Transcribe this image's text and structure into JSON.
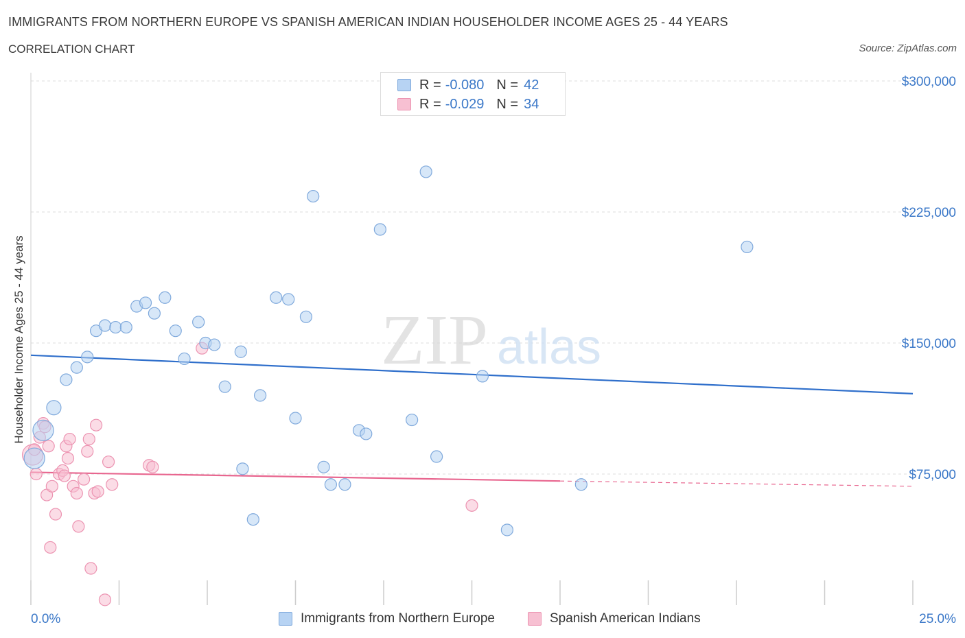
{
  "header": {
    "title": "IMMIGRANTS FROM NORTHERN EUROPE VS SPANISH AMERICAN INDIAN HOUSEHOLDER INCOME AGES 25 - 44 YEARS",
    "subtitle": "CORRELATION CHART",
    "source": "Source: ZipAtlas.com"
  },
  "legend": {
    "rows": [
      {
        "r_label": "R =",
        "r_value": "-0.080",
        "n_label": "N =",
        "n_value": "42"
      },
      {
        "r_label": "R =",
        "r_value": "-0.029",
        "n_label": "N =",
        "n_value": "34"
      }
    ]
  },
  "watermark": {
    "zip": "ZIP",
    "atlas": "atlas"
  },
  "colors": {
    "blue_fill": "#b7d3f3",
    "blue_stroke": "#7fa9dc",
    "blue_line": "#2f6fcb",
    "pink_fill": "#f7c0d2",
    "pink_stroke": "#ec93b1",
    "pink_line": "#e8668f",
    "axis_text_blue": "#3b78c8",
    "grid": "#dddddd"
  },
  "chart_data": {
    "type": "scatter",
    "title": "IMMIGRANTS FROM NORTHERN EUROPE VS SPANISH AMERICAN INDIAN HOUSEHOLDER INCOME AGES 25 - 44 YEARS",
    "xlabel": "",
    "ylabel": "Householder Income Ages 25 - 44 years",
    "xlim": [
      0,
      25
    ],
    "ylim": [
      0,
      300000
    ],
    "x_tick_labels": [
      "0.0%",
      "25.0%"
    ],
    "y_ticks": [
      75000,
      150000,
      225000,
      300000
    ],
    "y_tick_labels": [
      "$75,000",
      "$150,000",
      "$225,000",
      "$300,000"
    ],
    "grid": true,
    "legend_position": "top-center",
    "series": [
      {
        "name": "Immigrants from Northern Europe",
        "color": "#b7d3f3",
        "points": [
          [
            0.1,
            84000
          ],
          [
            0.35,
            100000
          ],
          [
            0.65,
            113000
          ],
          [
            1.0,
            129000
          ],
          [
            1.3,
            136000
          ],
          [
            1.6,
            142000
          ],
          [
            1.85,
            157000
          ],
          [
            2.1,
            160000
          ],
          [
            2.4,
            159000
          ],
          [
            2.7,
            159000
          ],
          [
            3.0,
            171000
          ],
          [
            3.25,
            173000
          ],
          [
            3.5,
            167000
          ],
          [
            3.8,
            176000
          ],
          [
            4.1,
            157000
          ],
          [
            4.35,
            141000
          ],
          [
            4.75,
            162000
          ],
          [
            4.95,
            150000
          ],
          [
            5.2,
            149000
          ],
          [
            5.5,
            125000
          ],
          [
            5.95,
            145000
          ],
          [
            6.0,
            78000
          ],
          [
            6.3,
            49000
          ],
          [
            6.5,
            120000
          ],
          [
            6.95,
            176000
          ],
          [
            7.3,
            175000
          ],
          [
            7.5,
            107000
          ],
          [
            7.8,
            165000
          ],
          [
            8.0,
            234000
          ],
          [
            8.3,
            79000
          ],
          [
            8.5,
            69000
          ],
          [
            8.9,
            69000
          ],
          [
            9.3,
            100000
          ],
          [
            9.5,
            98000
          ],
          [
            9.9,
            215000
          ],
          [
            10.8,
            106000
          ],
          [
            11.2,
            248000
          ],
          [
            11.5,
            85000
          ],
          [
            12.8,
            131000
          ],
          [
            13.5,
            43000
          ],
          [
            15.6,
            69000
          ],
          [
            20.3,
            205000
          ]
        ],
        "sizes": [
          "large",
          "large",
          "medium",
          "normal",
          "normal",
          "normal",
          "normal",
          "normal",
          "normal",
          "normal",
          "normal",
          "normal",
          "normal",
          "normal",
          "normal",
          "normal",
          "normal",
          "normal",
          "normal",
          "normal",
          "normal",
          "normal",
          "normal",
          "normal",
          "normal",
          "normal",
          "normal",
          "normal",
          "normal",
          "normal",
          "normal",
          "normal",
          "normal",
          "normal",
          "normal",
          "normal",
          "normal",
          "normal",
          "normal",
          "normal",
          "normal",
          "normal"
        ],
        "trend": {
          "x": [
            0,
            25
          ],
          "y": [
            143000,
            121000
          ]
        }
      },
      {
        "name": "Spanish American Indians",
        "color": "#f7c0d2",
        "points": [
          [
            0.05,
            86000
          ],
          [
            0.1,
            89000
          ],
          [
            0.15,
            75000
          ],
          [
            0.25,
            96000
          ],
          [
            0.35,
            104000
          ],
          [
            0.4,
            102000
          ],
          [
            0.45,
            63000
          ],
          [
            0.5,
            91000
          ],
          [
            0.55,
            33000
          ],
          [
            0.6,
            68000
          ],
          [
            0.7,
            52000
          ],
          [
            0.8,
            75000
          ],
          [
            0.9,
            77000
          ],
          [
            0.95,
            74000
          ],
          [
            1.0,
            91000
          ],
          [
            1.05,
            84000
          ],
          [
            1.1,
            95000
          ],
          [
            1.2,
            68000
          ],
          [
            1.3,
            64000
          ],
          [
            1.35,
            45000
          ],
          [
            1.5,
            72000
          ],
          [
            1.6,
            88000
          ],
          [
            1.65,
            95000
          ],
          [
            1.7,
            21000
          ],
          [
            1.8,
            64000
          ],
          [
            1.85,
            103000
          ],
          [
            1.9,
            65000
          ],
          [
            2.1,
            3000
          ],
          [
            2.2,
            82000
          ],
          [
            2.3,
            69000
          ],
          [
            3.35,
            80000
          ],
          [
            3.45,
            79000
          ],
          [
            4.85,
            147000
          ],
          [
            12.5,
            57000
          ]
        ],
        "sizes": [
          "large",
          "normal",
          "normal",
          "normal",
          "normal",
          "normal",
          "normal",
          "normal",
          "normal",
          "normal",
          "normal",
          "normal",
          "normal",
          "normal",
          "normal",
          "normal",
          "normal",
          "normal",
          "normal",
          "normal",
          "normal",
          "normal",
          "normal",
          "normal",
          "normal",
          "normal",
          "normal",
          "normal",
          "normal",
          "normal",
          "normal",
          "normal",
          "normal",
          "normal"
        ],
        "trend": {
          "x": [
            0,
            15
          ],
          "y": [
            76000,
            71000
          ],
          "dashed_to": [
            25,
            68000
          ]
        }
      }
    ]
  }
}
